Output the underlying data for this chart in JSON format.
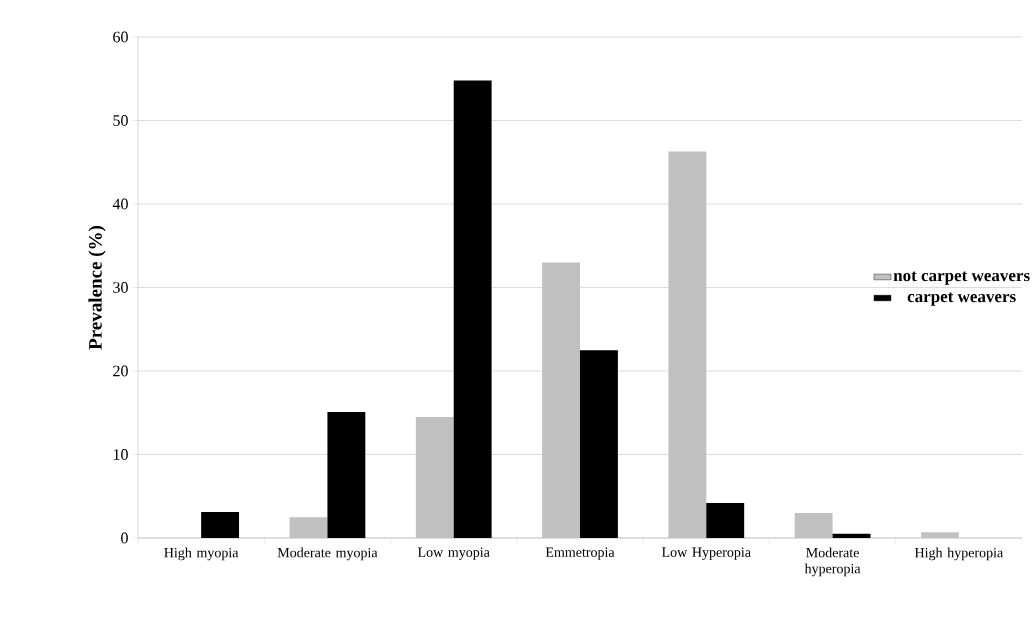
{
  "chart_data": {
    "type": "bar",
    "ylabel": "Prevalence (%)",
    "categories": [
      "High myopia",
      "Moderate myopia",
      "Low myopia",
      "Emmetropia",
      "Low Hyperopia",
      "Moderate hyperopia",
      "High hyperopia"
    ],
    "series": [
      {
        "name": "not carpet weavers",
        "color": "#c0c0c0",
        "values": [
          null,
          2.5,
          14.5,
          33.0,
          46.3,
          3.0,
          0.7
        ]
      },
      {
        "name": "carpet weavers",
        "color": "#000000",
        "values": [
          3.1,
          15.1,
          54.8,
          22.5,
          4.2,
          0.5,
          0
        ]
      }
    ],
    "ylim": [
      0,
      60
    ],
    "yticks": [
      0,
      10,
      20,
      30,
      40,
      50,
      60
    ],
    "grid": "y",
    "legend": "right"
  }
}
